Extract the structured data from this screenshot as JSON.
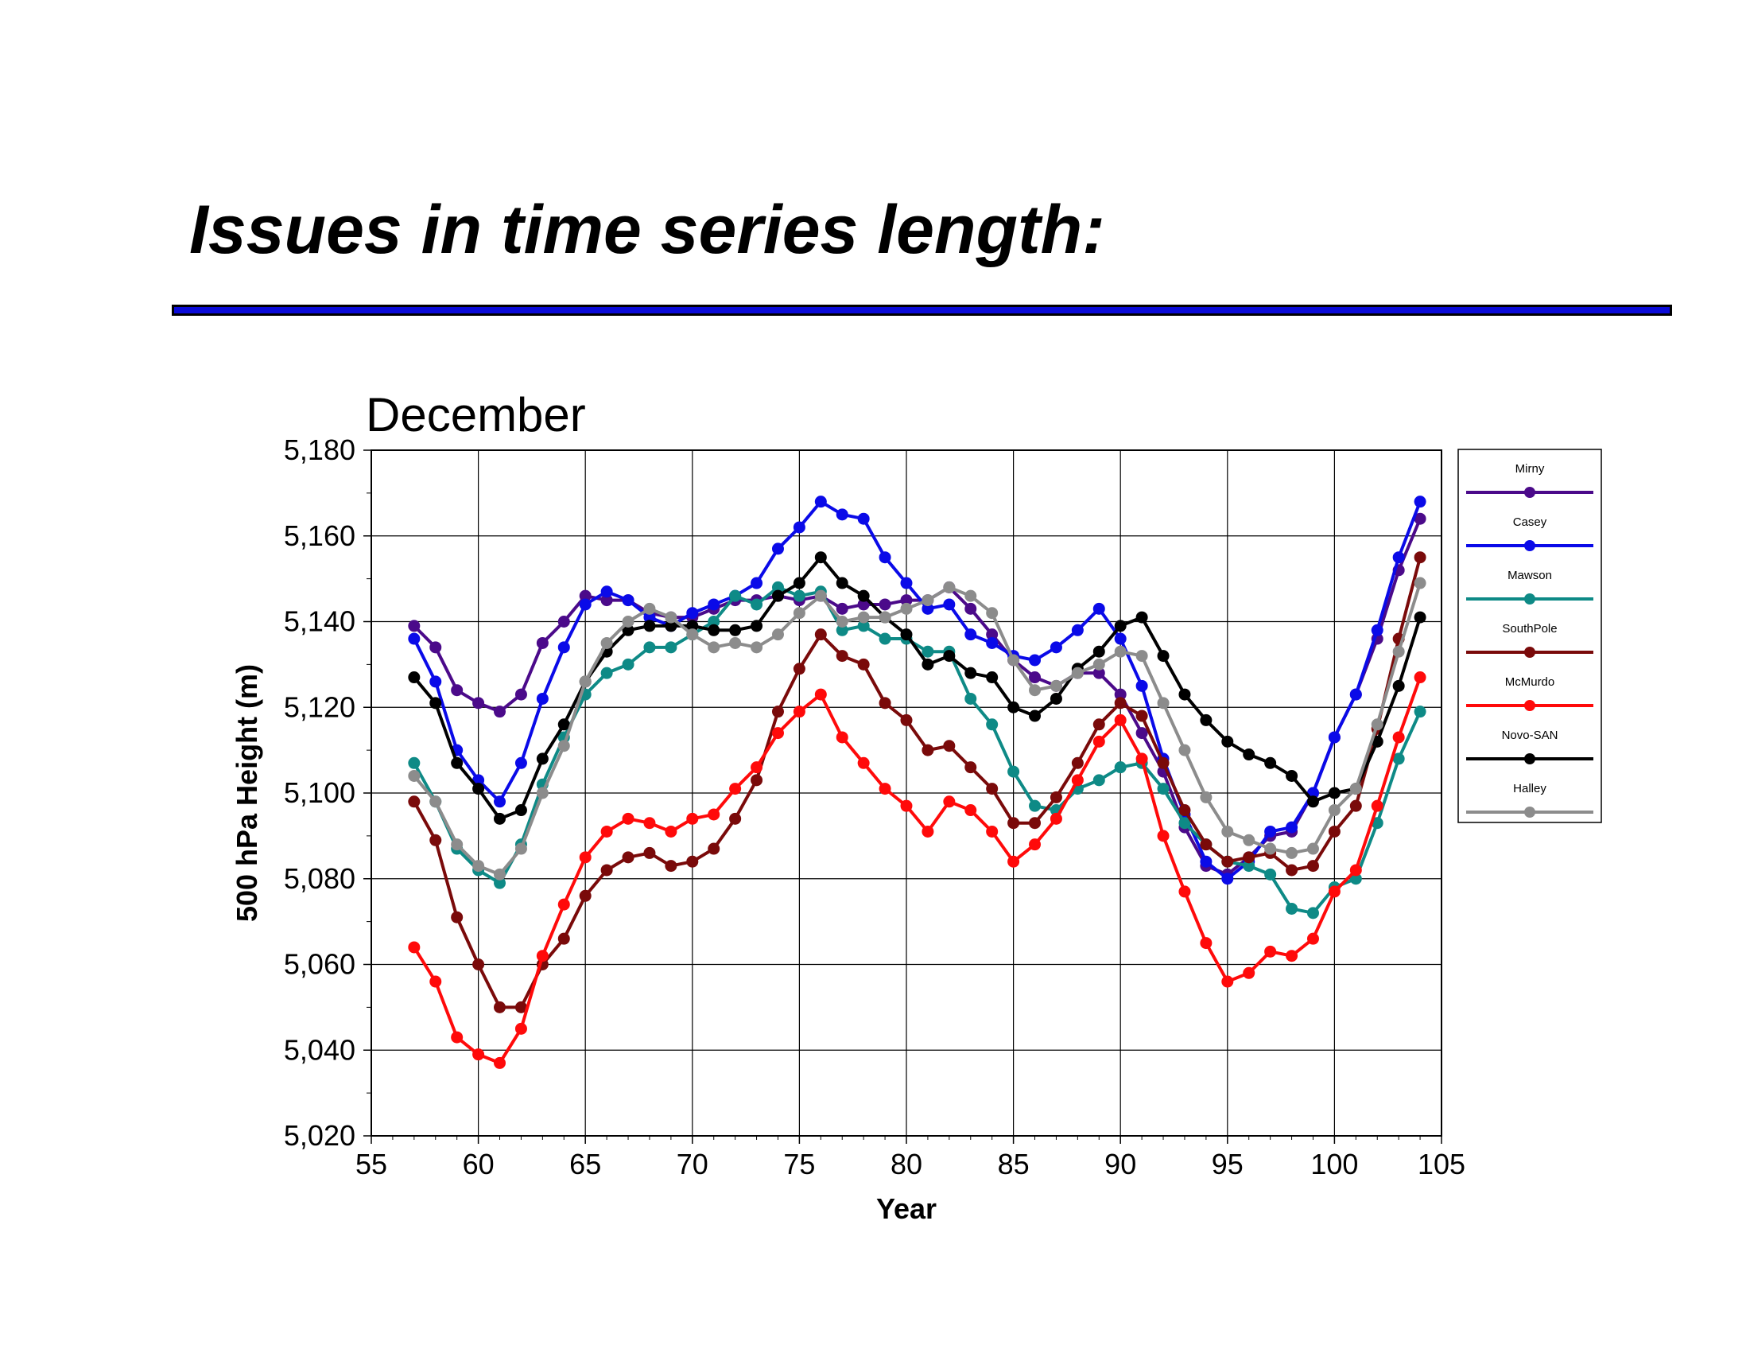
{
  "slide": {
    "title": "Issues in time series length:",
    "rule_color": "#0b0bd8"
  },
  "chart_data": {
    "type": "line",
    "title": "December",
    "xlabel": "Year",
    "ylabel": "500 hPa Height (m)",
    "xlim": [
      55,
      105
    ],
    "ylim": [
      5020,
      5180
    ],
    "x_ticks": [
      55,
      60,
      65,
      70,
      75,
      80,
      85,
      90,
      95,
      100,
      105
    ],
    "y_ticks": [
      5020,
      5040,
      5060,
      5080,
      5100,
      5120,
      5140,
      5160,
      5180
    ],
    "x_tick_labels": [
      "55",
      "60",
      "65",
      "70",
      "75",
      "80",
      "85",
      "90",
      "95",
      "100",
      "105"
    ],
    "y_tick_labels": [
      "5,020",
      "5,040",
      "5,060",
      "5,080",
      "5,100",
      "5,120",
      "5,140",
      "5,160",
      "5,180"
    ],
    "grid": true,
    "legend_position": "right",
    "x": [
      57,
      58,
      59,
      60,
      61,
      62,
      63,
      64,
      65,
      66,
      67,
      68,
      69,
      70,
      71,
      72,
      73,
      74,
      75,
      76,
      77,
      78,
      79,
      80,
      81,
      82,
      83,
      84,
      85,
      86,
      87,
      88,
      89,
      90,
      91,
      92,
      93,
      94,
      95,
      96,
      97,
      98,
      99,
      100,
      101,
      102,
      103,
      104
    ],
    "series": [
      {
        "name": "Mirny",
        "color": "#4b0a8a",
        "values": [
          5139,
          5134,
          5124,
          5121,
          5119,
          5123,
          5135,
          5140,
          5146,
          5145,
          5145,
          5142,
          5141,
          5141,
          5143,
          5145,
          5145,
          5146,
          5145,
          5146,
          5143,
          5144,
          5144,
          5145,
          5145,
          5148,
          5143,
          5137,
          5131,
          5127,
          5125,
          5128,
          5128,
          5123,
          5114,
          5105,
          5092,
          5083,
          5081,
          5085,
          5090,
          5091,
          5100,
          5113,
          5123,
          5136,
          5152,
          5164
        ]
      },
      {
        "name": "Casey",
        "color": "#0a0ae8",
        "values": [
          5136,
          5126,
          5110,
          5103,
          5098,
          5107,
          5122,
          5134,
          5144,
          5147,
          5145,
          5141,
          5139,
          5142,
          5144,
          5146,
          5149,
          5157,
          5162,
          5168,
          5165,
          5164,
          5155,
          5149,
          5143,
          5144,
          5137,
          5135,
          5132,
          5131,
          5134,
          5138,
          5143,
          5136,
          5125,
          5108,
          5095,
          5084,
          5080,
          5084,
          5091,
          5092,
          5100,
          5113,
          5123,
          5138,
          5155,
          5168
        ]
      },
      {
        "name": "Mawson",
        "color": "#0e8a86",
        "values": [
          5107,
          5098,
          5087,
          5082,
          5079,
          5088,
          5102,
          5113,
          5123,
          5128,
          5130,
          5134,
          5134,
          5137,
          5140,
          5146,
          5144,
          5148,
          5146,
          5147,
          5138,
          5139,
          5136,
          5136,
          5133,
          5133,
          5122,
          5116,
          5105,
          5097,
          5096,
          5101,
          5103,
          5106,
          5107,
          5101,
          5093,
          5088,
          5084,
          5083,
          5081,
          5073,
          5072,
          5078,
          5080,
          5093,
          5108,
          5119
        ]
      },
      {
        "name": "SouthPole",
        "color": "#7a0a0a",
        "values": [
          5098,
          5089,
          5071,
          5060,
          5050,
          5050,
          5060,
          5066,
          5076,
          5082,
          5085,
          5086,
          5083,
          5084,
          5087,
          5094,
          5103,
          5119,
          5129,
          5137,
          5132,
          5130,
          5121,
          5117,
          5110,
          5111,
          5106,
          5101,
          5093,
          5093,
          5099,
          5107,
          5116,
          5121,
          5118,
          5107,
          5096,
          5088,
          5084,
          5085,
          5086,
          5082,
          5083,
          5091,
          5097,
          5115,
          5136,
          5155
        ]
      },
      {
        "name": "McMurdo",
        "color": "#ff0a0a",
        "values": [
          5064,
          5056,
          5043,
          5039,
          5037,
          5045,
          5062,
          5074,
          5085,
          5091,
          5094,
          5093,
          5091,
          5094,
          5095,
          5101,
          5106,
          5114,
          5119,
          5123,
          5113,
          5107,
          5101,
          5097,
          5091,
          5098,
          5096,
          5091,
          5084,
          5088,
          5094,
          5103,
          5112,
          5117,
          5108,
          5090,
          5077,
          5065,
          5056,
          5058,
          5063,
          5062,
          5066,
          5077,
          5082,
          5097,
          5113,
          5127
        ]
      },
      {
        "name": "Novo-SAN",
        "color": "#000000",
        "values": [
          5127,
          5121,
          5107,
          5101,
          5094,
          5096,
          5108,
          5116,
          5126,
          5133,
          5138,
          5139,
          5139,
          5139,
          5138,
          5138,
          5139,
          5146,
          5149,
          5155,
          5149,
          5146,
          5141,
          5137,
          5130,
          5132,
          5128,
          5127,
          5120,
          5118,
          5122,
          5129,
          5133,
          5139,
          5141,
          5132,
          5123,
          5117,
          5112,
          5109,
          5107,
          5104,
          5098,
          5100,
          5101,
          5112,
          5125,
          5141
        ]
      },
      {
        "name": "Halley",
        "color": "#8c8c8c",
        "values": [
          5104,
          5098,
          5088,
          5083,
          5081,
          5087,
          5100,
          5111,
          5126,
          5135,
          5140,
          5143,
          5141,
          5137,
          5134,
          5135,
          5134,
          5137,
          5142,
          5146,
          5140,
          5141,
          5141,
          5143,
          5145,
          5148,
          5146,
          5142,
          5131,
          5124,
          5125,
          5128,
          5130,
          5133,
          5132,
          5121,
          5110,
          5099,
          5091,
          5089,
          5087,
          5086,
          5087,
          5096,
          5101,
          5116,
          5133,
          5149
        ]
      }
    ]
  }
}
